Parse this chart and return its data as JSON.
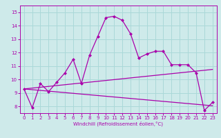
{
  "xlabel": "Windchill (Refroidissement éolien,°C)",
  "background_color": "#ceeaea",
  "line_color": "#aa00aa",
  "grid_color": "#aad8d8",
  "xlim": [
    -0.5,
    23.5
  ],
  "ylim": [
    7.5,
    15.5
  ],
  "yticks": [
    8,
    9,
    10,
    11,
    12,
    13,
    14,
    15
  ],
  "xticks": [
    0,
    1,
    2,
    3,
    4,
    5,
    6,
    7,
    8,
    9,
    10,
    11,
    12,
    13,
    14,
    15,
    16,
    17,
    18,
    19,
    20,
    21,
    22,
    23
  ],
  "main_x": [
    0,
    1,
    2,
    3,
    4,
    5,
    6,
    7,
    8,
    9,
    10,
    11,
    12,
    13,
    14,
    15,
    16,
    17,
    18,
    19,
    20,
    21,
    22,
    23
  ],
  "main_y": [
    9.3,
    7.9,
    9.7,
    9.1,
    9.8,
    10.5,
    11.5,
    9.7,
    11.8,
    13.2,
    14.6,
    14.7,
    14.4,
    13.4,
    11.6,
    11.9,
    12.1,
    12.1,
    11.1,
    11.1,
    11.1,
    10.5,
    7.7,
    8.3
  ],
  "trend1_x": [
    0,
    23
  ],
  "trend1_y": [
    9.3,
    10.75
  ],
  "trend2_x": [
    0,
    23
  ],
  "trend2_y": [
    9.3,
    8.05
  ],
  "tick_fontsize": 5,
  "xlabel_fontsize": 5
}
